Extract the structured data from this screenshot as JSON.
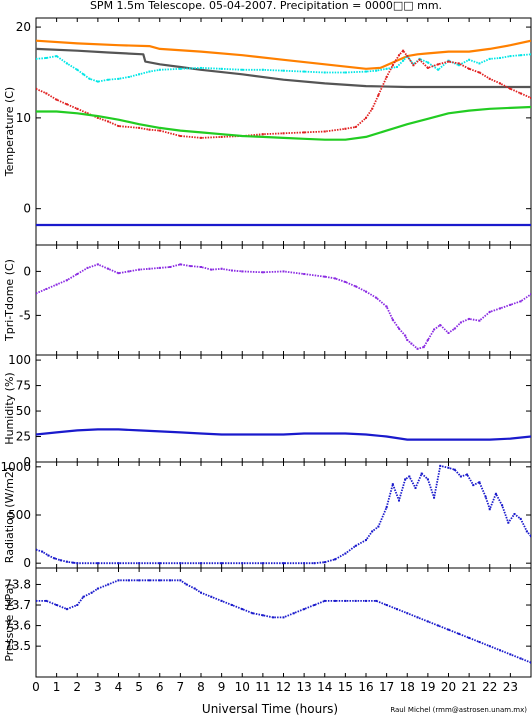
{
  "title": "SPM 1.5m Telescope. 05-04-2007. Precipitation = 0000□□ mm.",
  "credit": "Raul Michel (rmm@astrosen.unam.mx)",
  "chart_data": {
    "type": "line",
    "xlabel": "Universal Time (hours)",
    "xlim": [
      0,
      24
    ],
    "xticks": [
      "0",
      "1",
      "2",
      "3",
      "4",
      "5",
      "6",
      "7",
      "8",
      "9",
      "10",
      "11",
      "12",
      "13",
      "14",
      "15",
      "16",
      "17",
      "18",
      "19",
      "20",
      "21",
      "22",
      "23"
    ],
    "panels": [
      {
        "id": "temperature",
        "ylabel": "Temperature (C)",
        "ylim": [
          -4,
          21
        ],
        "yticks": [
          {
            "v": 0,
            "t": "0"
          },
          {
            "v": 10,
            "t": "10"
          },
          {
            "v": 20,
            "t": "20"
          }
        ],
        "series": [
          {
            "color": "#ff8000",
            "style": "line",
            "x": [
              0,
              2,
              4,
              5.5,
              6,
              8,
              10,
              12,
              14,
              16,
              16.7,
              17.2,
              17.6,
              18,
              18.5,
              19,
              20,
              21,
              22,
              23,
              24
            ],
            "y": [
              18.5,
              18.2,
              18.0,
              17.9,
              17.6,
              17.3,
              16.9,
              16.4,
              15.9,
              15.4,
              15.5,
              16.0,
              16.4,
              16.8,
              17.0,
              17.1,
              17.3,
              17.3,
              17.6,
              18.0,
              18.5
            ]
          },
          {
            "color": "#555555",
            "style": "line",
            "x": [
              0,
              2,
              3.5,
              5.2,
              5.3,
              6,
              7,
              8,
              10,
              12,
              14,
              16,
              18,
              20,
              22,
              24
            ],
            "y": [
              17.6,
              17.4,
              17.2,
              17.0,
              16.2,
              15.9,
              15.6,
              15.3,
              14.8,
              14.2,
              13.8,
              13.5,
              13.4,
              13.4,
              13.4,
              13.4
            ]
          },
          {
            "color": "#00e6e6",
            "style": "points",
            "x": [
              0,
              0.5,
              1,
              1.5,
              2,
              2.3,
              2.6,
              3,
              3.5,
              4,
              4.5,
              5,
              5.5,
              6,
              7,
              8,
              9,
              10,
              11,
              12,
              13,
              14,
              15,
              16,
              16.5,
              17,
              17.5,
              17.8,
              18,
              18.3,
              18.6,
              19,
              19.5,
              20,
              20.5,
              21,
              21.5,
              22,
              22.5,
              23,
              23.5,
              24
            ],
            "y": [
              16.5,
              16.6,
              16.8,
              16.0,
              15.3,
              14.8,
              14.3,
              14.0,
              14.2,
              14.3,
              14.5,
              14.8,
              15.1,
              15.3,
              15.4,
              15.5,
              15.4,
              15.3,
              15.3,
              15.2,
              15.1,
              15.0,
              15.0,
              15.1,
              15.2,
              15.4,
              15.6,
              16.3,
              16.8,
              15.9,
              16.5,
              16.1,
              15.3,
              16.3,
              15.8,
              16.4,
              16.0,
              16.5,
              16.6,
              16.8,
              16.9,
              17.0
            ]
          },
          {
            "color": "#e02020",
            "style": "points",
            "x": [
              0,
              0.5,
              1,
              1.5,
              2,
              2.5,
              3,
              3.5,
              4,
              5,
              5.5,
              6,
              7,
              8,
              9,
              10,
              11,
              12,
              13,
              14,
              15,
              15.5,
              16,
              16.3,
              16.6,
              17,
              17.3,
              17.6,
              17.8,
              18,
              18.3,
              18.6,
              19,
              19.5,
              20,
              20.5,
              21,
              21.5,
              22,
              22.5,
              23,
              23.5,
              24
            ],
            "y": [
              13.2,
              12.7,
              12.0,
              11.5,
              11.0,
              10.5,
              10.0,
              9.6,
              9.1,
              8.9,
              8.7,
              8.6,
              8.0,
              7.8,
              7.9,
              8.0,
              8.2,
              8.3,
              8.4,
              8.5,
              8.8,
              9.0,
              10.0,
              11.0,
              12.5,
              14.5,
              15.8,
              16.9,
              17.4,
              16.8,
              15.8,
              16.4,
              15.5,
              15.9,
              16.2,
              16.0,
              15.4,
              15.0,
              14.3,
              13.8,
              13.2,
              12.7,
              12.2
            ]
          },
          {
            "color": "#22cc22",
            "style": "line",
            "x": [
              0,
              1,
              2,
              3,
              4,
              5,
              6,
              7,
              8,
              9,
              10,
              11,
              12,
              13,
              14,
              15,
              16,
              17,
              18,
              19,
              20,
              21,
              22,
              23,
              24
            ],
            "y": [
              10.7,
              10.7,
              10.5,
              10.2,
              9.8,
              9.3,
              8.9,
              8.6,
              8.4,
              8.2,
              8.0,
              7.9,
              7.8,
              7.7,
              7.6,
              7.6,
              7.9,
              8.6,
              9.3,
              9.9,
              10.5,
              10.8,
              11.0,
              11.1,
              11.2
            ]
          },
          {
            "color": "#1a1acc",
            "style": "line",
            "x": [
              0,
              24
            ],
            "y": [
              -1.8,
              -1.8
            ]
          }
        ]
      },
      {
        "id": "dt",
        "ylabel": "Tpri-Tdome (C)",
        "ylim": [
          -9.5,
          3
        ],
        "yticks": [
          {
            "v": -5,
            "t": "-5"
          },
          {
            "v": 0,
            "t": "0"
          }
        ],
        "series": [
          {
            "color": "#8a2be2",
            "style": "points",
            "x": [
              0,
              0.5,
              1,
              1.5,
              2,
              2.5,
              3,
              3.5,
              4,
              4.5,
              5,
              5.5,
              6,
              6.5,
              7,
              7.5,
              8,
              8.5,
              9,
              9.5,
              10,
              11,
              12,
              13,
              14,
              14.5,
              15,
              15.5,
              16,
              16.5,
              17,
              17.3,
              17.6,
              17.9,
              18,
              18.2,
              18.5,
              18.8,
              19,
              19.3,
              19.6,
              20,
              20.3,
              20.6,
              21,
              21.5,
              22,
              22.5,
              23,
              23.5,
              24
            ],
            "y": [
              -2.5,
              -2.0,
              -1.5,
              -1.0,
              -0.3,
              0.4,
              0.8,
              0.3,
              -0.2,
              0,
              0.2,
              0.3,
              0.4,
              0.5,
              0.8,
              0.6,
              0.5,
              0.2,
              0.3,
              0.1,
              0,
              -0.1,
              0,
              -0.3,
              -0.6,
              -0.8,
              -1.2,
              -1.7,
              -2.3,
              -3.0,
              -4.0,
              -5.5,
              -6.5,
              -7.3,
              -7.8,
              -8.2,
              -8.8,
              -8.6,
              -7.8,
              -6.6,
              -6.1,
              -7.0,
              -6.5,
              -5.8,
              -5.4,
              -5.6,
              -4.6,
              -4.2,
              -3.8,
              -3.4,
              -2.6
            ]
          }
        ]
      },
      {
        "id": "humidity",
        "ylabel": "Humidity (%)",
        "ylim": [
          0,
          105
        ],
        "yticks": [
          {
            "v": 0,
            "t": "0"
          },
          {
            "v": 25,
            "t": "25"
          },
          {
            "v": 50,
            "t": "50"
          },
          {
            "v": 75,
            "t": "75"
          },
          {
            "v": 100,
            "t": "100"
          }
        ],
        "series": [
          {
            "color": "#1a1acc",
            "style": "line",
            "x": [
              0,
              1,
              2,
              3,
              4,
              5,
              6,
              7,
              8,
              9,
              10,
              11,
              12,
              13,
              14,
              15,
              16,
              17,
              18,
              19,
              20,
              21,
              22,
              23,
              24
            ],
            "y": [
              27,
              29,
              31,
              32,
              32,
              31,
              30,
              29,
              28,
              27,
              27,
              27,
              27,
              28,
              28,
              28,
              27,
              25,
              22,
              22,
              22,
              22,
              22,
              23,
              25
            ]
          }
        ]
      },
      {
        "id": "radiation",
        "ylabel": "Radiation (W/m2)",
        "ylim": [
          -50,
          1050
        ],
        "yticks": [
          {
            "v": 0,
            "t": "0"
          },
          {
            "v": 500,
            "t": "500"
          },
          {
            "v": 1000,
            "t": "1000"
          }
        ],
        "series": [
          {
            "color": "#1a1acc",
            "style": "points",
            "x": [
              0,
              0.3,
              0.6,
              0.9,
              1.2,
              1.5,
              1.8,
              2,
              3,
              4,
              5,
              6,
              7,
              8,
              9,
              10,
              11,
              12,
              13,
              13.5,
              14,
              14.5,
              15,
              15.5,
              16,
              16.3,
              16.6,
              17,
              17.3,
              17.6,
              17.9,
              18.1,
              18.4,
              18.7,
              19,
              19.3,
              19.6,
              20,
              20.3,
              20.6,
              20.9,
              21.2,
              21.5,
              21.8,
              22,
              22.3,
              22.6,
              22.9,
              23.2,
              23.5,
              23.8,
              24
            ],
            "y": [
              140,
              120,
              80,
              50,
              30,
              15,
              5,
              0,
              0,
              0,
              0,
              0,
              0,
              0,
              0,
              0,
              0,
              0,
              0,
              0,
              10,
              40,
              100,
              180,
              240,
              330,
              380,
              580,
              820,
              650,
              870,
              900,
              780,
              930,
              870,
              680,
              1010,
              990,
              970,
              900,
              920,
              810,
              840,
              690,
              560,
              720,
              600,
              420,
              510,
              460,
              330,
              280
            ]
          }
        ]
      },
      {
        "id": "pressure",
        "ylabel": "Pressure (kPa)",
        "ylim": [
          73.35,
          73.88
        ],
        "yticks": [
          {
            "v": 73.5,
            "t": "73.5"
          },
          {
            "v": 73.6,
            "t": "73.6"
          },
          {
            "v": 73.7,
            "t": "73.7"
          },
          {
            "v": 73.8,
            "t": "73.8"
          }
        ],
        "series": [
          {
            "color": "#1a1acc",
            "style": "points",
            "x": [
              0,
              0.5,
              1,
              1.5,
              2,
              2.3,
              2.7,
              3,
              3.5,
              4,
              4.5,
              5,
              5.5,
              6,
              6.5,
              7,
              7.3,
              7.7,
              8,
              8.5,
              9,
              9.5,
              10,
              10.5,
              11,
              11.5,
              12,
              12.5,
              13,
              13.5,
              14,
              14.5,
              15,
              15.5,
              16,
              16.5,
              17,
              17.5,
              18,
              18.5,
              19,
              19.5,
              20,
              20.5,
              21,
              21.5,
              22,
              22.5,
              23,
              23.5,
              24
            ],
            "y": [
              73.72,
              73.72,
              73.7,
              73.68,
              73.7,
              73.74,
              73.76,
              73.78,
              73.8,
              73.82,
              73.82,
              73.82,
              73.82,
              73.82,
              73.82,
              73.82,
              73.8,
              73.78,
              73.76,
              73.74,
              73.72,
              73.7,
              73.68,
              73.66,
              73.65,
              73.64,
              73.64,
              73.66,
              73.68,
              73.7,
              73.72,
              73.72,
              73.72,
              73.72,
              73.72,
              73.72,
              73.7,
              73.68,
              73.66,
              73.64,
              73.62,
              73.6,
              73.58,
              73.56,
              73.54,
              73.52,
              73.5,
              73.48,
              73.46,
              73.44,
              73.42
            ]
          }
        ]
      }
    ]
  }
}
